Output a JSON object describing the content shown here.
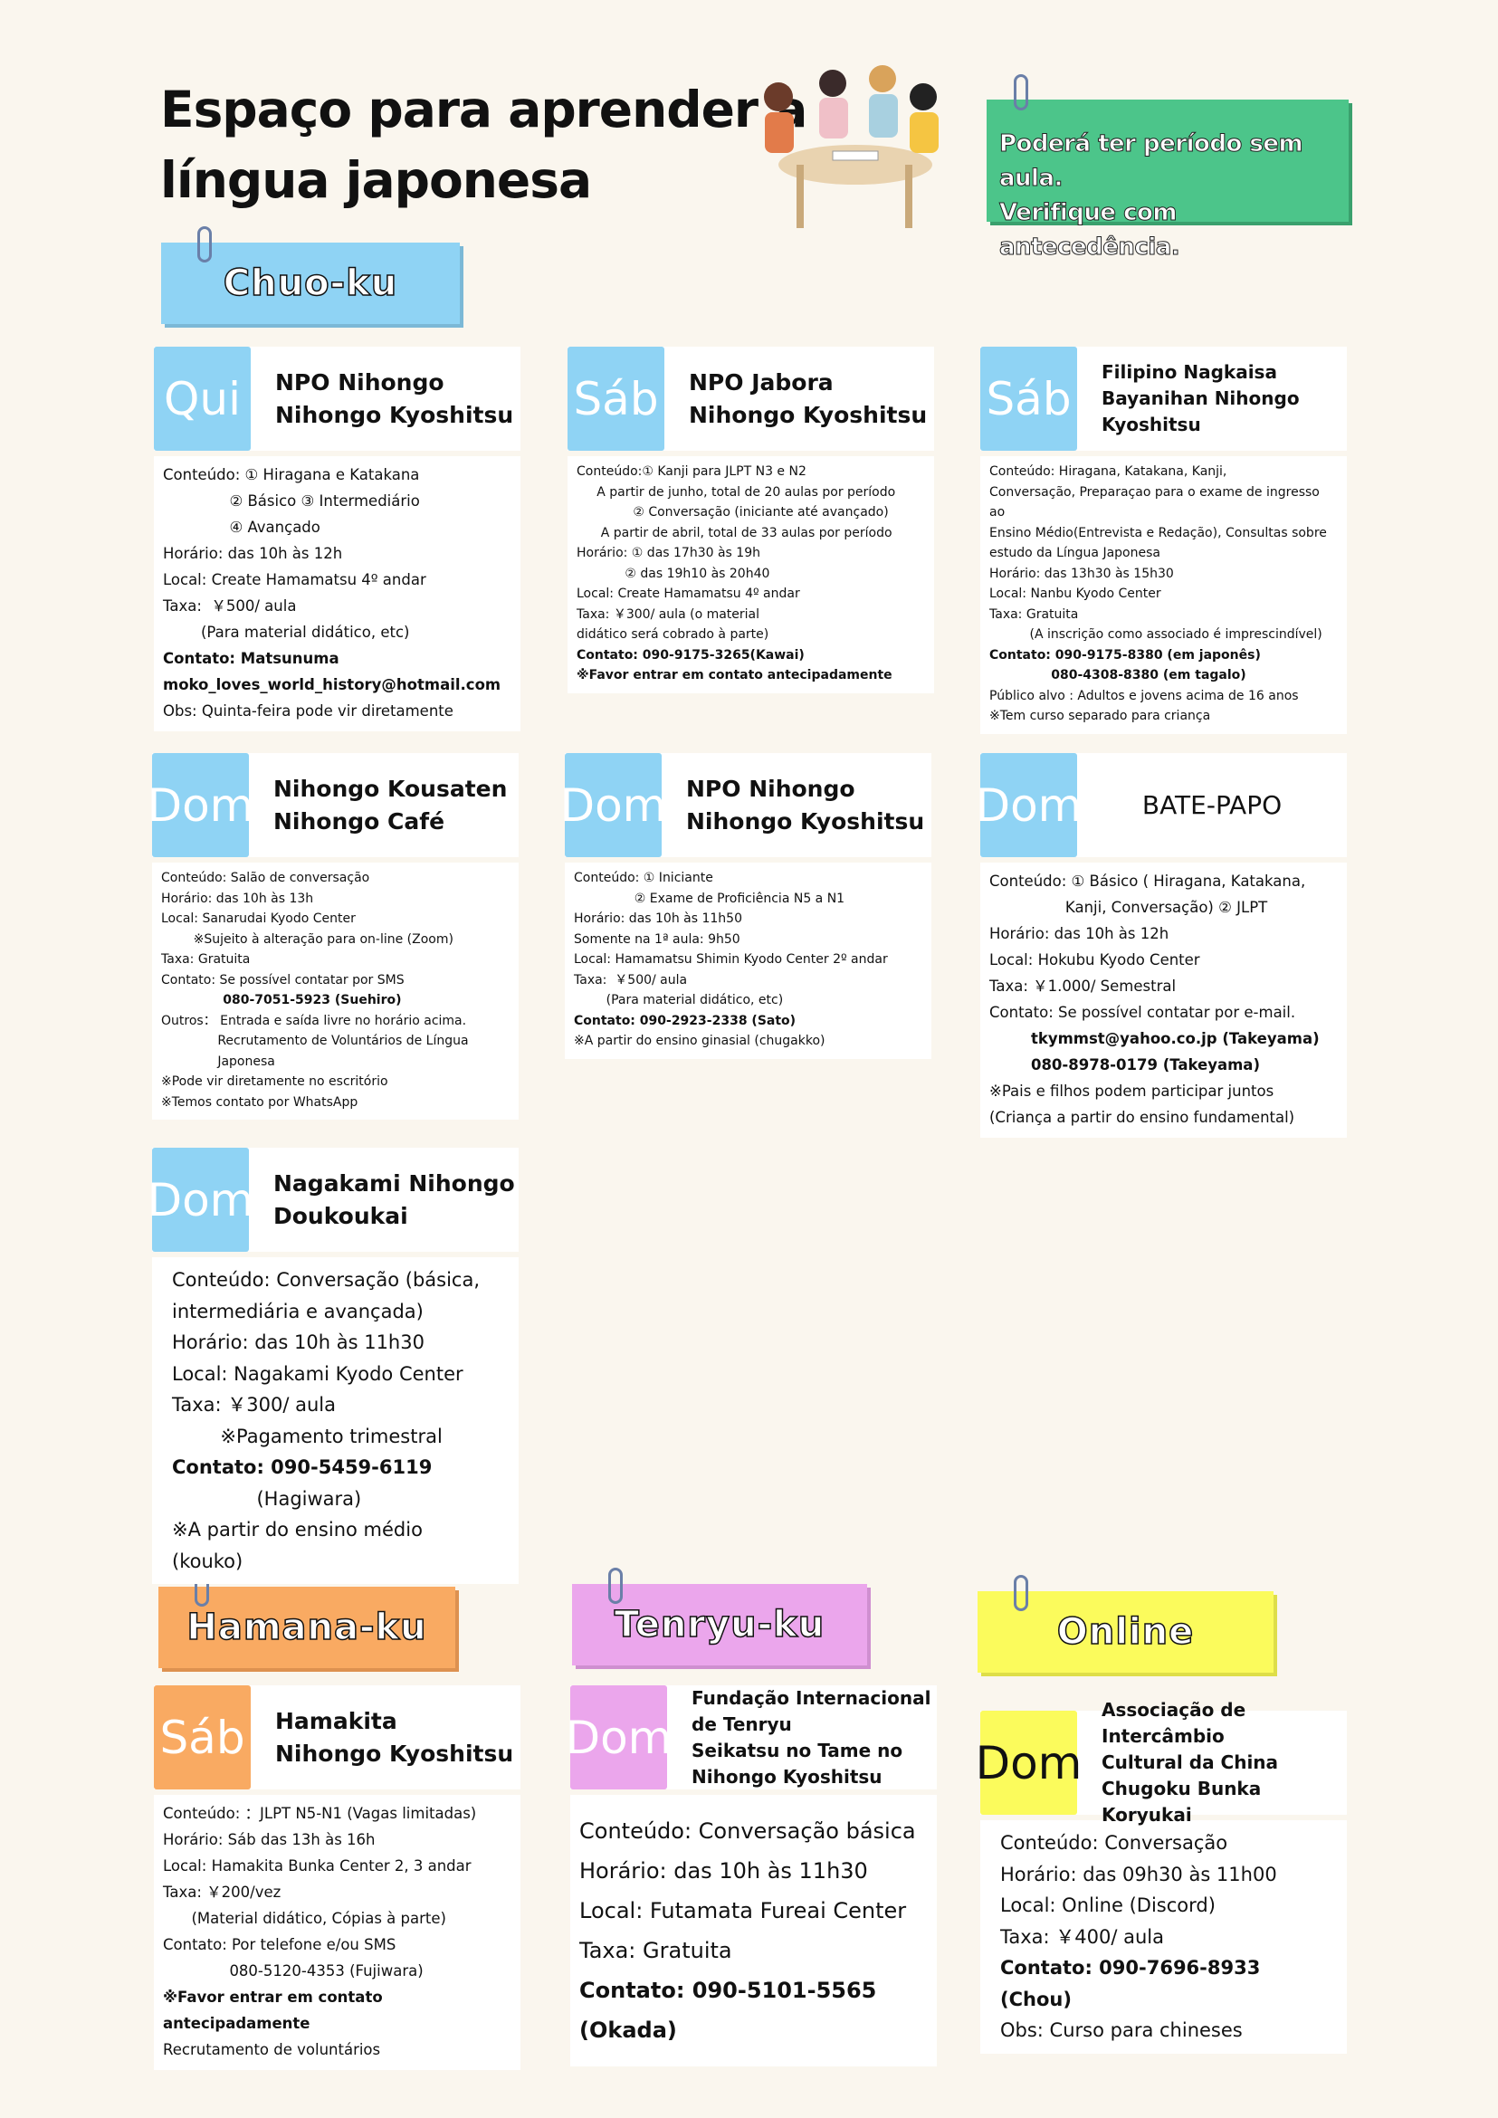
{
  "title": [
    "Espaço para aprender a",
    "língua japonesa"
  ],
  "notice": [
    "Poderá ter período sem aula.",
    "Verifique com antecedência."
  ],
  "colors": {
    "background": "#faf6ee",
    "chuo": "#8fd3f4",
    "hamana": "#f9aa62",
    "tenryu": "#eba6ec",
    "online": "#fbfb5c",
    "notice": "#4cc58a"
  },
  "sections": {
    "chuo": "Chuo-ku",
    "hamana": "Hamana-ku",
    "tenryu": "Tenryu-ku",
    "online": "Online"
  },
  "cards": [
    {
      "day": "Qui",
      "name": [
        "NPO Nihongo",
        "Nihongo Kyoshitsu"
      ],
      "lines": [
        "Conteúdo: ① Hiragana e Katakana",
        "              ② Básico ③ Intermediário",
        "              ④ Avançado",
        "Horário: das 10h às 12h",
        "Local: Create Hamamatsu 4º andar",
        "Taxa:  ￥500/ aula",
        "        (Para material didático, etc)",
        "Contato: Matsunuma",
        "moko_loves_world_history@hotmail.com",
        "Obs: Quinta-feira pode vir diretamente"
      ]
    },
    {
      "day": "Sáb",
      "name": [
        "NPO Jabora",
        "Nihongo Kyoshitsu"
      ],
      "lines": [
        "Conteúdo:① Kanji para JLPT N3 e N2",
        "     A partir de junho, total de 20 aulas por período",
        "              ② Conversação (iniciante até avançado)",
        "      A partir de abril, total de 33 aulas por período",
        "Horário: ① das 17h30 às 19h",
        "            ② das 19h10 às 20h40",
        "Local: Create Hamamatsu 4º andar",
        "Taxa: ￥300/ aula (o material",
        "didático será cobrado à parte)",
        "Contato: 090-9175-3265(Kawai)",
        "※Favor entrar em contato antecipadamente"
      ]
    },
    {
      "day": "Sáb",
      "name": [
        "Filipino Nagkaisa",
        "Bayanihan Nihongo",
        "Kyoshitsu"
      ],
      "lines": [
        "Conteúdo: Hiragana, Katakana, Kanji,",
        "Conversação, Preparaçao para o exame de ingresso ao",
        "Ensino Médio(Entrevista e Redação), Consultas sobre",
        "estudo da Língua Japonesa",
        "Horário: das 13h30 às 15h30",
        "Local: Nanbu Kyodo Center",
        "Taxa: Gratuita",
        "          (A inscrição como associado é imprescindível)",
        "Contato: 090-9175-8380 (em japonês)",
        "              080-4308-8380 (em tagalo)",
        "Público alvo : Adultos e jovens acima de 16 anos",
        "※Tem curso separado para criança"
      ]
    },
    {
      "day": "Dom",
      "name": [
        "Nihongo Kousaten",
        "Nihongo Café"
      ],
      "lines": [
        "Conteúdo: Salão de conversação",
        "Horário: das 10h às 13h",
        "Local: Sanarudai Kyodo Center",
        "        ※Sujeito à alteração para on-line (Zoom)",
        "Taxa: Gratuita",
        "Contato: Se possível contatar por SMS",
        "              080-7051-5923 (Suehiro)",
        "Outros： Entrada e saída livre no horário acima.",
        "              Recrutamento de Voluntários de Língua",
        "              Japonesa",
        "※Pode vir diretamente no escritório",
        "※Temos contato por WhatsApp"
      ]
    },
    {
      "day": "Dom",
      "name": [
        "NPO Nihongo",
        "Nihongo Kyoshitsu"
      ],
      "lines": [
        "Conteúdo: ① Iniciante",
        "               ② Exame de Proficiência N5 a N1",
        "Horário: das 10h às 11h50",
        "Somente na 1ª aula: 9h50",
        "Local: Hamamatsu Shimin Kyodo Center 2º andar",
        "Taxa:  ￥500/ aula",
        "        (Para material didático, etc)",
        "Contato: 090-2923-2338 (Sato)",
        "※A partir do ensino ginasial (chugakko)"
      ]
    },
    {
      "day": "Dom",
      "name": [
        "BATE-PAPO"
      ],
      "lines": [
        "Conteúdo: ① Básico ( Hiragana, Katakana,",
        "                Kanji, Conversação) ② JLPT",
        "Horário: das 10h às 12h",
        "Local: Hokubu Kyodo Center",
        "Taxa: ￥1.000/ Semestral",
        "Contato: Se possível contatar por e-mail.",
        "        tkymmst@yahoo.co.jp (Takeyama)",
        "        080-8978-0179 (Takeyama)",
        "※Pais e filhos podem participar juntos",
        "(Criança a partir do ensino fundamental)"
      ]
    },
    {
      "day": "Dom",
      "name": [
        "Nagakami Nihongo",
        "Doukoukai"
      ],
      "lines": [
        "Conteúdo: Conversação (básica,",
        "intermediária e avançada)",
        "Horário: das 10h às 11h30",
        "Local: Nagakami Kyodo Center",
        "Taxa: ￥300/ aula",
        "        ※Pagamento trimestral",
        "Contato: 090-5459-6119",
        "              (Hagiwara)",
        "※A partir do ensino médio (kouko)"
      ]
    },
    {
      "day": "Sáb",
      "name": [
        "Hamakita",
        "Nihongo Kyoshitsu"
      ],
      "lines": [
        "Conteúdo: ：JLPT N5-N1 (Vagas limitadas)",
        "Horário: Sáb das 13h às 16h",
        "Local: Hamakita Bunka Center 2, 3 andar",
        "Taxa: ￥200/vez",
        "      (Material didático, Cópias à parte)",
        "Contato: Por telefone e/ou SMS",
        "              080-5120-4353 (Fujiwara)",
        "※Favor entrar em contato antecipadamente",
        "Recrutamento de voluntários"
      ]
    },
    {
      "day": "Dom",
      "name": [
        "Fundação Internacional",
        "de Tenryu",
        "Seikatsu no Tame no",
        "Nihongo Kyoshitsu"
      ],
      "lines": [
        "Conteúdo: Conversação básica",
        "Horário: das 10h às 11h30",
        "Local: Futamata Fureai Center",
        "Taxa: Gratuita",
        "Contato: 090-5101-5565 (Okada)"
      ]
    },
    {
      "day": "Dom",
      "name": [
        "Associação de Intercâmbio",
        "Cultural da China",
        "Chugoku Bunka Koryukai"
      ],
      "lines": [
        "Conteúdo: Conversação",
        "Horário: das 09h30 às 11h00",
        "Local: Online (Discord)",
        "Taxa: ￥400/ aula",
        "Contato: 090-7696-8933 (Chou)",
        "Obs: Curso para chineses"
      ]
    }
  ]
}
